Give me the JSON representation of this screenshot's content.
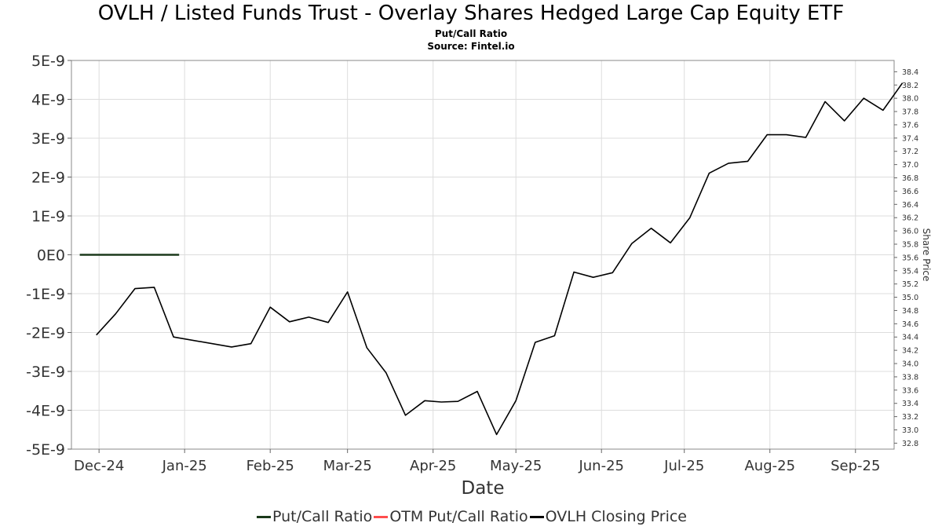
{
  "title": "OVLH / Listed Funds Trust - Overlay Shares Hedged Large Cap Equity ETF",
  "subtitle": "Put/Call Ratio",
  "source": "Source: Fintel.io",
  "chart_data": {
    "type": "line",
    "xlabel": "Date",
    "ylabel_left": "",
    "ylabel_right": "Share Price",
    "x_tick_labels": [
      "Dec-24",
      "Jan-25",
      "Feb-25",
      "Mar-25",
      "Apr-25",
      "May-25",
      "Jun-25",
      "Jul-25",
      "Aug-25",
      "Sep-25"
    ],
    "x_tick_dates": [
      "2024-12-01",
      "2025-01-01",
      "2025-02-01",
      "2025-03-01",
      "2025-04-01",
      "2025-05-01",
      "2025-06-01",
      "2025-07-01",
      "2025-08-01",
      "2025-09-01"
    ],
    "xlim": [
      "2024-11-21",
      "2025-09-15"
    ],
    "y_left_tick_labels": [
      "5E-9",
      "4E-9",
      "3E-9",
      "2E-9",
      "1E-9",
      "0E0",
      "-1E-9",
      "-2E-9",
      "-3E-9",
      "-4E-9",
      "-5E-9"
    ],
    "y_left_ticks": [
      5e-09,
      4e-09,
      3e-09,
      2e-09,
      1e-09,
      0,
      -1e-09,
      -2e-09,
      -3e-09,
      -4e-09,
      -5e-09
    ],
    "ylim_left": [
      -5e-09,
      5e-09
    ],
    "y_right_tick_labels": [
      "38.4",
      "38.2",
      "38.0",
      "37.8",
      "37.6",
      "37.4",
      "37.2",
      "37.0",
      "36.8",
      "36.6",
      "36.4",
      "36.2",
      "36.0",
      "35.8",
      "35.6",
      "35.4",
      "35.2",
      "35.0",
      "34.8",
      "34.6",
      "34.4",
      "34.2",
      "34.0",
      "33.8",
      "33.6",
      "33.4",
      "33.2",
      "33.0",
      "32.8"
    ],
    "y_right_ticks": [
      38.4,
      38.2,
      38.0,
      37.8,
      37.6,
      37.4,
      37.2,
      37.0,
      36.8,
      36.6,
      36.4,
      36.2,
      36.0,
      35.8,
      35.6,
      35.4,
      35.2,
      35.0,
      34.8,
      34.6,
      34.4,
      34.2,
      34.0,
      33.8,
      33.6,
      33.4,
      33.2,
      33.0,
      32.8
    ],
    "ylim_right": [
      32.71,
      38.57
    ],
    "grid": true,
    "legend_placement": "bottom-center",
    "series": [
      {
        "name": "Put/Call Ratio",
        "color": "#1b3a1b",
        "axis": "left",
        "points": [
          [
            "2024-11-24",
            0
          ],
          [
            "2024-12-30",
            0
          ]
        ]
      },
      {
        "name": "OTM Put/Call Ratio",
        "color": "#ff4d4d",
        "axis": "left",
        "points": []
      },
      {
        "name": "OVLH Closing Price",
        "color": "#000000",
        "axis": "right",
        "points": [
          [
            "2024-11-30",
            34.43
          ],
          [
            "2024-12-07",
            34.75
          ],
          [
            "2024-12-14",
            35.13
          ],
          [
            "2024-12-21",
            35.15
          ],
          [
            "2024-12-28",
            34.4
          ],
          [
            "2025-01-18",
            34.25
          ],
          [
            "2025-01-25",
            34.3
          ],
          [
            "2025-02-01",
            34.85
          ],
          [
            "2025-02-08",
            34.63
          ],
          [
            "2025-02-15",
            34.7
          ],
          [
            "2025-02-22",
            34.62
          ],
          [
            "2025-03-01",
            35.08
          ],
          [
            "2025-03-08",
            34.24
          ],
          [
            "2025-03-15",
            33.86
          ],
          [
            "2025-03-22",
            33.22
          ],
          [
            "2025-03-29",
            33.44
          ],
          [
            "2025-04-04",
            33.42
          ],
          [
            "2025-04-10",
            33.43
          ],
          [
            "2025-04-17",
            33.58
          ],
          [
            "2025-04-24",
            32.93
          ],
          [
            "2025-05-01",
            33.44
          ],
          [
            "2025-05-08",
            34.32
          ],
          [
            "2025-05-15",
            34.42
          ],
          [
            "2025-05-22",
            35.38
          ],
          [
            "2025-05-29",
            35.3
          ],
          [
            "2025-06-05",
            35.37
          ],
          [
            "2025-06-12",
            35.81
          ],
          [
            "2025-06-19",
            36.04
          ],
          [
            "2025-06-26",
            35.82
          ],
          [
            "2025-07-03",
            36.2
          ],
          [
            "2025-07-10",
            36.87
          ],
          [
            "2025-07-17",
            37.02
          ],
          [
            "2025-07-24",
            37.05
          ],
          [
            "2025-07-31",
            37.45
          ],
          [
            "2025-08-07",
            37.45
          ],
          [
            "2025-08-14",
            37.41
          ],
          [
            "2025-08-21",
            37.95
          ],
          [
            "2025-08-28",
            37.66
          ],
          [
            "2025-09-04",
            38.0
          ],
          [
            "2025-09-11",
            37.82
          ],
          [
            "2025-09-18",
            38.23
          ]
        ]
      }
    ]
  }
}
